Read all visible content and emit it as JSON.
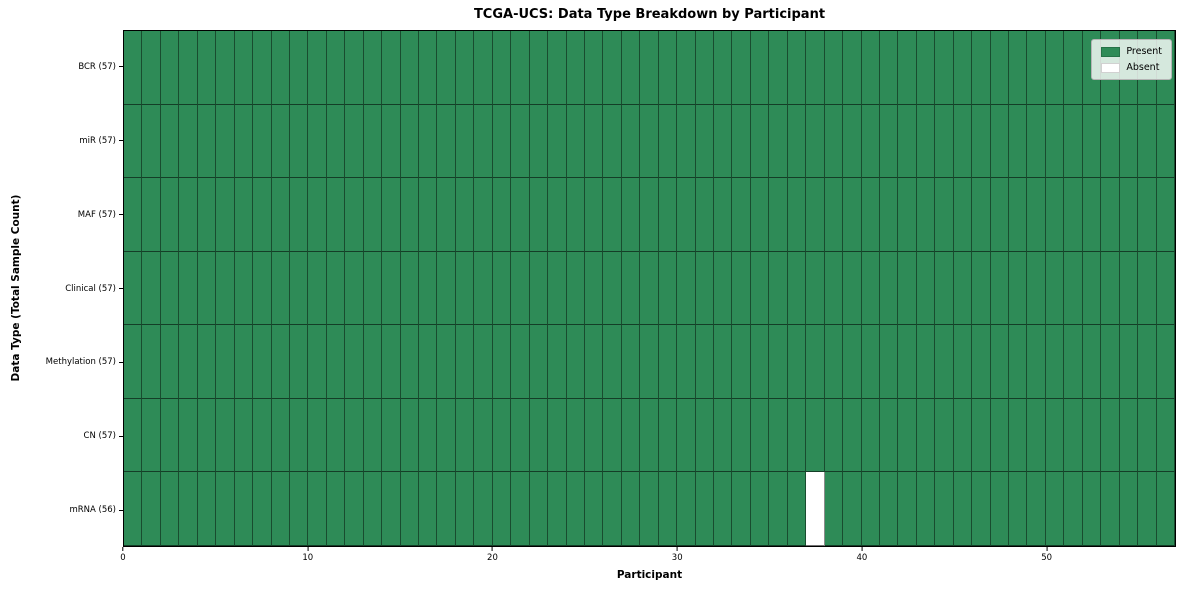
{
  "chart_data": {
    "type": "heatmap",
    "title": "TCGA-UCS: Data Type Breakdown by Participant",
    "xlabel": "Participant",
    "ylabel": "Data Type (Total Sample Count)",
    "n_participants": 57,
    "x_ticks": [
      0,
      10,
      20,
      30,
      40,
      50
    ],
    "x_range": [
      0,
      57
    ],
    "grid": "cell-borders-on",
    "rows": [
      {
        "name": "BCR",
        "label": "BCR (57)",
        "total": 57,
        "absent_participants": []
      },
      {
        "name": "miR",
        "label": "miR (57)",
        "total": 57,
        "absent_participants": []
      },
      {
        "name": "MAF",
        "label": "MAF (57)",
        "total": 57,
        "absent_participants": []
      },
      {
        "name": "Clinical",
        "label": "Clinical (57)",
        "total": 57,
        "absent_participants": []
      },
      {
        "name": "Methylation",
        "label": "Methylation (57)",
        "total": 57,
        "absent_participants": []
      },
      {
        "name": "CN",
        "label": "CN (57)",
        "total": 57,
        "absent_participants": []
      },
      {
        "name": "mRNA",
        "label": "mRNA (56)",
        "total": 56,
        "absent_participants": [
          37
        ]
      }
    ],
    "legend": {
      "position": "upper-right",
      "entries": [
        {
          "label": "Present",
          "color": "#2e8b57"
        },
        {
          "label": "Absent",
          "color": "#ffffff"
        }
      ]
    },
    "colors": {
      "present": "#2e8b57",
      "absent": "#ffffff",
      "cell_border": "#1d3a2a",
      "plot_border": "#000000",
      "background": "#ffffff"
    }
  }
}
